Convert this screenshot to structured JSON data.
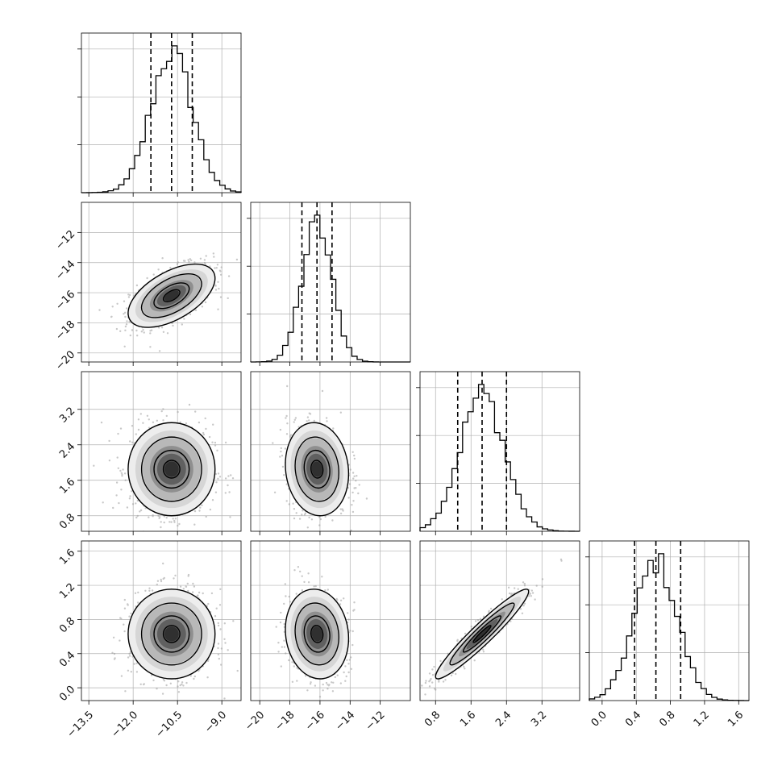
{
  "chart_data": {
    "type": "corner-plot",
    "variables": 4,
    "ticks": [
      [
        "−13.5",
        "−12.0",
        "−10.5",
        "−9.0"
      ],
      [
        "−20",
        "−18",
        "−16",
        "−14",
        "−12"
      ],
      [
        "0.8",
        "1.6",
        "2.4",
        "3.2"
      ],
      [
        "0.0",
        "0.4",
        "0.8",
        "1.2",
        "1.6"
      ]
    ],
    "tick_values": [
      [
        -13.5,
        -12.0,
        -10.5,
        -9.0
      ],
      [
        -20,
        -18,
        -16,
        -14,
        -12
      ],
      [
        0.8,
        1.6,
        2.4,
        3.2
      ],
      [
        0.0,
        0.4,
        0.8,
        1.2,
        1.6
      ]
    ],
    "ranges": [
      [
        -13.75,
        -8.35
      ],
      [
        -20.6,
        -10.0
      ],
      [
        0.45,
        4.05
      ],
      [
        -0.15,
        1.72
      ]
    ],
    "means": [
      -10.7,
      -16.2,
      1.85,
      0.63
    ],
    "stds": [
      0.7,
      1.0,
      0.5,
      0.25
    ],
    "quantile_lines": [
      [
        -11.4,
        -10.7,
        -10.0
      ],
      [
        -17.2,
        -16.2,
        -15.2
      ],
      [
        1.3,
        1.85,
        2.4
      ],
      [
        0.38,
        0.63,
        0.92
      ]
    ],
    "correlations": [
      [
        1.0,
        0.55,
        0.0,
        0.0
      ],
      [
        0.55,
        1.0,
        -0.1,
        -0.1
      ],
      [
        0.0,
        -0.1,
        1.0,
        0.95
      ],
      [
        0.0,
        -0.1,
        0.95,
        1.0
      ]
    ],
    "grid": true,
    "legend": "none"
  }
}
